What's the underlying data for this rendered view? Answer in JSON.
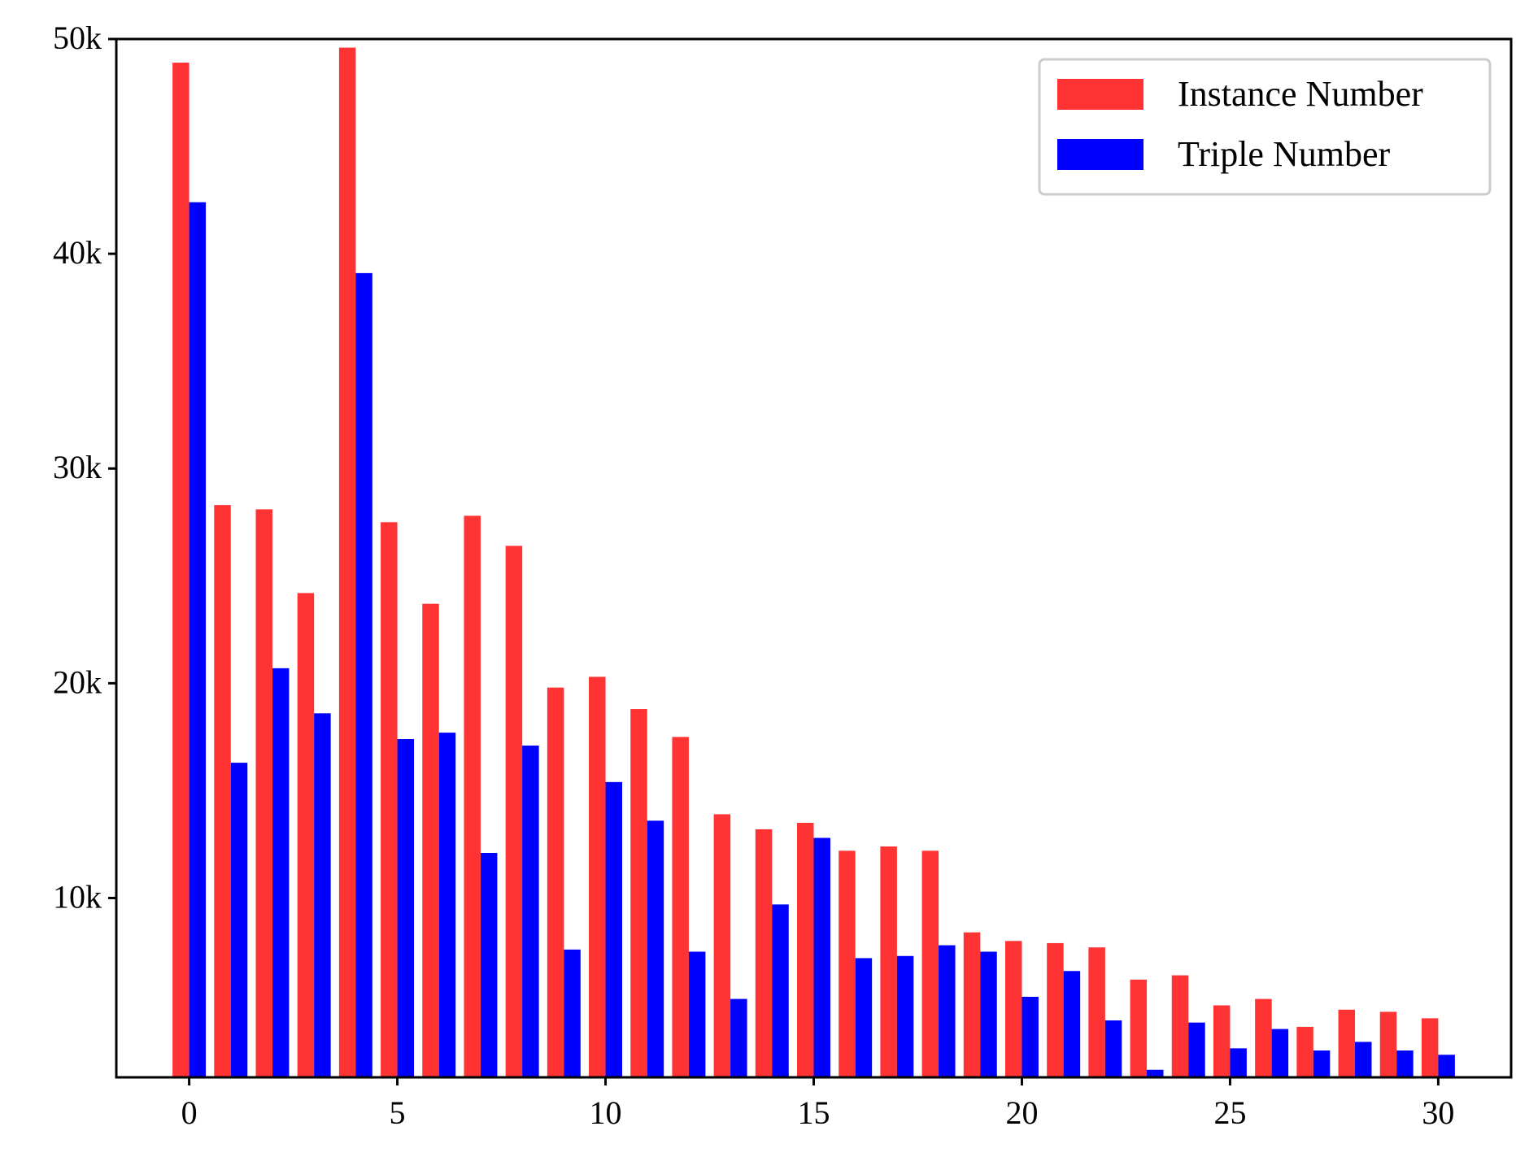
{
  "chart_data": {
    "type": "bar",
    "title": "",
    "xlabel": "",
    "ylabel": "",
    "x": [
      0,
      1,
      2,
      3,
      4,
      5,
      6,
      7,
      8,
      9,
      10,
      11,
      12,
      13,
      14,
      15,
      16,
      17,
      18,
      19,
      20,
      21,
      22,
      23,
      24,
      25,
      26,
      27,
      28,
      29,
      30
    ],
    "series": [
      {
        "name": "Instance Number",
        "color": "#ff3333",
        "values": [
          48900,
          28300,
          28100,
          24200,
          49600,
          27500,
          23700,
          27800,
          26400,
          19800,
          20300,
          18800,
          17500,
          13900,
          13200,
          13500,
          12200,
          12400,
          12200,
          8400,
          8000,
          7900,
          7700,
          6200,
          6400,
          5000,
          5300,
          4000,
          4800,
          4700,
          4400
        ]
      },
      {
        "name": "Triple Number",
        "color": "#0000ff",
        "values": [
          42400,
          16300,
          20700,
          18600,
          39100,
          17400,
          17700,
          12100,
          17100,
          7600,
          15400,
          13600,
          7500,
          5300,
          9700,
          12800,
          7200,
          7300,
          7800,
          7500,
          5400,
          6600,
          4300,
          2000,
          4200,
          3000,
          3900,
          2900,
          3300,
          2900,
          2700
        ]
      }
    ],
    "xticks": [
      "0",
      "5",
      "10",
      "15",
      "20",
      "25",
      "30"
    ],
    "xtick_values": [
      0,
      5,
      10,
      15,
      20,
      25,
      30
    ],
    "yticks": [
      "10k",
      "20k",
      "30k",
      "40k",
      "50k"
    ],
    "ytick_values": [
      10000,
      20000,
      30000,
      40000,
      50000
    ],
    "xlim": [
      -1.75,
      31.75
    ],
    "ylim": [
      1650,
      50000
    ],
    "legend_position": "top-right",
    "grid": false
  }
}
